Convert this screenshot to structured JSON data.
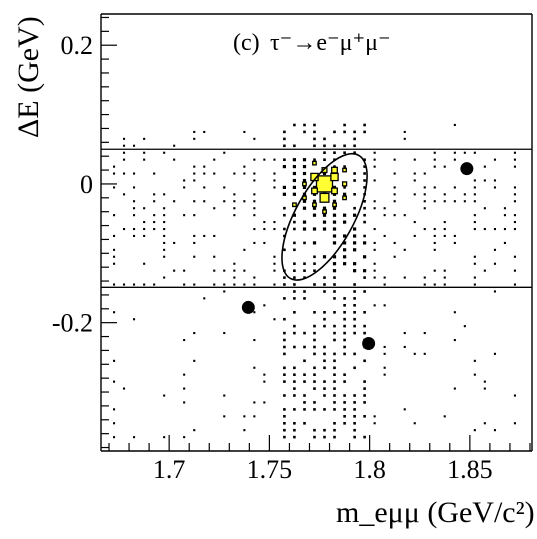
{
  "chart_data": {
    "type": "scatter",
    "panel_label": "(c)",
    "title": "τ⁻→e⁻μ⁺μ⁻",
    "xlabel": "m_eμμ (GeV/c²)",
    "ylabel": "ΔE (GeV)",
    "xlim": [
      1.666,
      1.881
    ],
    "ylim": [
      -0.385,
      0.245
    ],
    "x_ticks": [
      1.7,
      1.75,
      1.8,
      1.85
    ],
    "x_tick_labels": [
      "1.7",
      "1.75",
      "1.8",
      "1.85"
    ],
    "y_ticks": [
      -0.2,
      0,
      0.2
    ],
    "y_tick_labels": [
      "-0.2",
      "0",
      "0.2"
    ],
    "grid": false,
    "band": {
      "y_low": -0.149,
      "y_high": 0.05
    },
    "signal_ellipse": {
      "x_center": 1.7775,
      "y_center": -0.0475,
      "semi_axis_x": 0.0145,
      "semi_axis_y": 0.1015,
      "rotation_deg": 29
    },
    "signal_mc_boxes": [
      {
        "x": 1.7775,
        "y": 0.0,
        "w": 1.0
      },
      {
        "x": 1.7725,
        "y": 0.01,
        "w": 0.45
      },
      {
        "x": 1.7825,
        "y": 0.01,
        "w": 0.45
      },
      {
        "x": 1.7775,
        "y": -0.02,
        "w": 0.55
      },
      {
        "x": 1.7725,
        "y": -0.01,
        "w": 0.35
      },
      {
        "x": 1.7825,
        "y": -0.01,
        "w": 0.35
      },
      {
        "x": 1.7775,
        "y": 0.02,
        "w": 0.3
      },
      {
        "x": 1.7825,
        "y": 0.02,
        "w": 0.35
      },
      {
        "x": 1.7875,
        "y": 0.0,
        "w": 0.25
      },
      {
        "x": 1.7675,
        "y": 0.0,
        "w": 0.2
      },
      {
        "x": 1.7675,
        "y": -0.02,
        "w": 0.2
      },
      {
        "x": 1.7725,
        "y": -0.03,
        "w": 0.2
      },
      {
        "x": 1.7825,
        "y": -0.03,
        "w": 0.2
      },
      {
        "x": 1.7775,
        "y": -0.04,
        "w": 0.15
      },
      {
        "x": 1.7725,
        "y": 0.03,
        "w": 0.15
      },
      {
        "x": 1.7875,
        "y": 0.02,
        "w": 0.15
      },
      {
        "x": 1.7875,
        "y": -0.02,
        "w": 0.15
      },
      {
        "x": 1.7625,
        "y": -0.03,
        "w": 0.15
      }
    ],
    "data_points": [
      {
        "x": 1.8485,
        "y": 0.022
      },
      {
        "x": 1.7395,
        "y": -0.178
      },
      {
        "x": 1.7995,
        "y": -0.23
      }
    ],
    "background_mc_grid": {
      "x_start": 1.6725,
      "x_step": 0.005,
      "x_count": 41,
      "y_start": -0.365,
      "y_step": 0.01,
      "y_count": 46
    },
    "colors": {
      "signal_fill": "#ffff33",
      "outline": "#000000",
      "background": "#ffffff"
    }
  }
}
